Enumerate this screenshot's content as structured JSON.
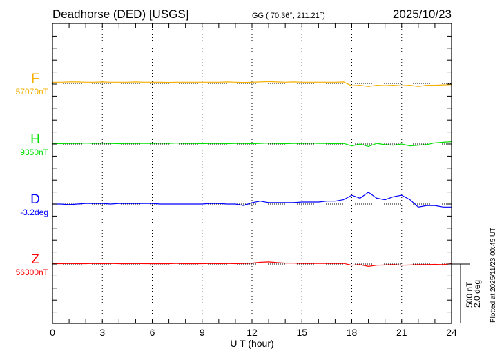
{
  "header": {
    "station": "Deadhorse (DED)  [USGS]",
    "coords": "GG ( 70.36°, 211.21°)",
    "date": "2025/10/23"
  },
  "footer": {
    "xlabel": "U T (hour)",
    "plotted_at": "Plotted at 2025/11/23 00:45 UT"
  },
  "scale": {
    "nT_label": "500 nT",
    "deg_label": "2.0 deg",
    "nT": 500,
    "deg": 2.0
  },
  "colors": {
    "F": "#f5b000",
    "H": "#00e000",
    "D": "#0000ff",
    "Z": "#ff0000",
    "axis": "#000000"
  },
  "chart_data": {
    "type": "line",
    "xlabel": "U T (hour)",
    "xlim": [
      0,
      24
    ],
    "xticks": [
      0,
      3,
      6,
      9,
      12,
      15,
      18,
      21,
      24
    ],
    "x": [
      0,
      0.5,
      1,
      1.5,
      2,
      2.5,
      3,
      3.5,
      4,
      4.5,
      5,
      5.5,
      6,
      6.5,
      7,
      7.5,
      8,
      8.5,
      9,
      9.5,
      10,
      10.5,
      11,
      11.5,
      12,
      12.5,
      13,
      13.5,
      14,
      14.5,
      15,
      15.5,
      16,
      16.5,
      17,
      17.5,
      18,
      18.5,
      19,
      19.5,
      20,
      20.5,
      21,
      21.5,
      22,
      22.5,
      23,
      23.5,
      24
    ],
    "series": [
      {
        "name": "F",
        "baseline_label": "57070nT",
        "unit": "nT",
        "baseline": 57070,
        "values": [
          10,
          10,
          12,
          12,
          10,
          10,
          12,
          10,
          10,
          10,
          12,
          10,
          10,
          10,
          8,
          10,
          10,
          10,
          10,
          10,
          10,
          12,
          10,
          8,
          10,
          12,
          15,
          12,
          10,
          12,
          10,
          10,
          10,
          10,
          10,
          12,
          -20,
          -15,
          -25,
          -15,
          -18,
          -15,
          -20,
          -15,
          -25,
          -15,
          -15,
          -12,
          -10
        ]
      },
      {
        "name": "H",
        "baseline_label": "9350nT",
        "unit": "nT",
        "baseline": 9350,
        "values": [
          5,
          3,
          5,
          5,
          8,
          5,
          8,
          5,
          3,
          5,
          5,
          5,
          5,
          8,
          5,
          8,
          5,
          5,
          3,
          5,
          5,
          3,
          5,
          5,
          3,
          5,
          8,
          5,
          3,
          5,
          5,
          8,
          5,
          5,
          3,
          5,
          -15,
          0,
          -20,
          5,
          -5,
          -10,
          0,
          -15,
          -10,
          -5,
          10,
          15,
          20
        ]
      },
      {
        "name": "D",
        "baseline_label": "-3.2deg",
        "unit": "deg",
        "baseline": -3.2,
        "values": [
          0,
          0,
          -0.02,
          0,
          0.02,
          0.02,
          0.02,
          0,
          0.02,
          0.02,
          0.02,
          0.02,
          0.02,
          0,
          0,
          0,
          0,
          0,
          0,
          0.02,
          0.02,
          0,
          0,
          -0.05,
          0.05,
          0.1,
          0.05,
          0.05,
          0.05,
          0.05,
          0.07,
          0.07,
          0.07,
          0.1,
          0.1,
          0.15,
          0.3,
          0.2,
          0.4,
          0.2,
          0.15,
          0.25,
          0.3,
          0.15,
          -0.1,
          -0.05,
          -0.05,
          -0.1,
          -0.1
        ]
      },
      {
        "name": "Z",
        "baseline_label": "56300nT",
        "unit": "nT",
        "baseline": 56300,
        "values": [
          3,
          3,
          5,
          3,
          3,
          5,
          3,
          5,
          3,
          3,
          5,
          3,
          3,
          3,
          3,
          5,
          3,
          3,
          3,
          5,
          3,
          5,
          3,
          5,
          8,
          15,
          18,
          12,
          8,
          8,
          5,
          5,
          5,
          5,
          5,
          5,
          -10,
          -5,
          -20,
          -10,
          -8,
          -5,
          -10,
          -8,
          -5,
          -5,
          -3,
          -5,
          3
        ]
      }
    ]
  }
}
